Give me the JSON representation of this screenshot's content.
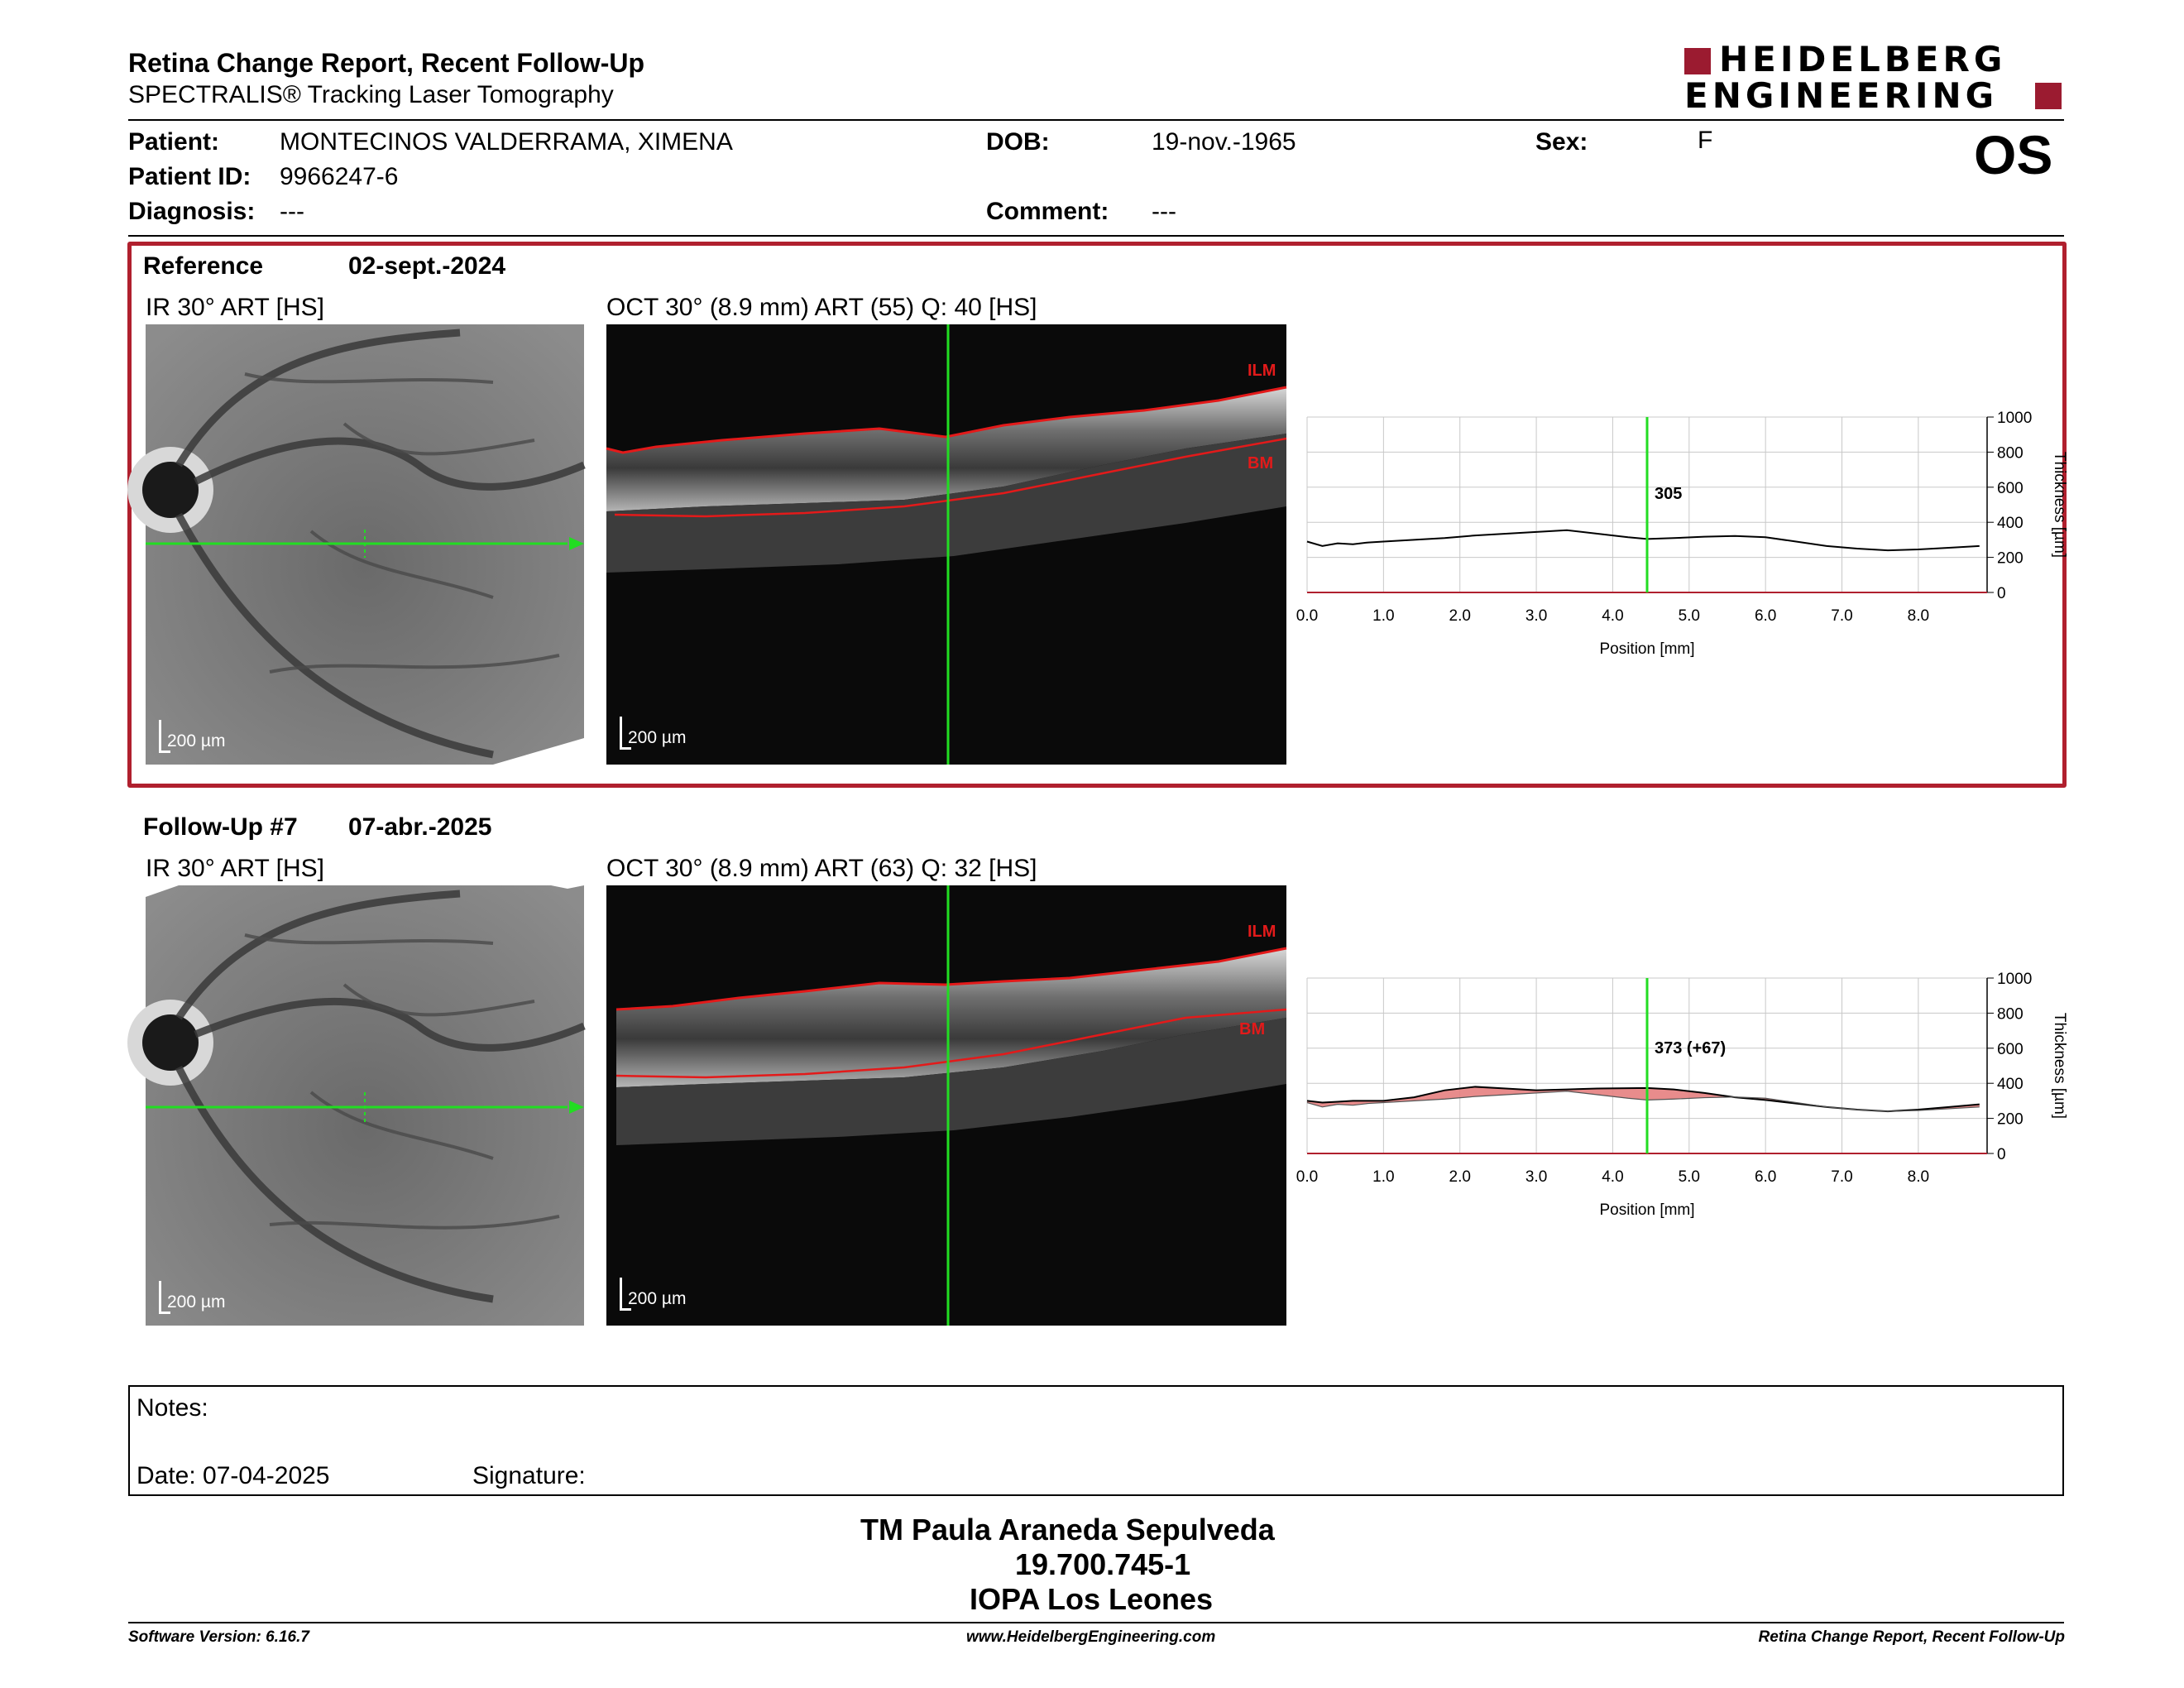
{
  "header": {
    "title": "Retina Change Report, Recent Follow-Up",
    "subtitle": "SPECTRALIS® Tracking Laser Tomography",
    "logo_line1": "HEIDELBERG",
    "logo_line2": "ENGINEERING",
    "eye": "OS"
  },
  "patient": {
    "name_label": "Patient:",
    "name": "MONTECINOS VALDERRAMA, XIMENA",
    "id_label": "Patient ID:",
    "id": "9966247-6",
    "diagnosis_label": "Diagnosis:",
    "diagnosis": "---",
    "dob_label": "DOB:",
    "dob": "19-nov.-1965",
    "comment_label": "Comment:",
    "comment": "---",
    "sex_label": "Sex:",
    "sex": "F"
  },
  "reference": {
    "label": "Reference",
    "date": "02-sept.-2024",
    "ir_title": "IR 30° ART [HS]",
    "oct_title": "OCT 30° (8.9 mm) ART (55) Q: 40 [HS]",
    "scale": "200 µm",
    "ilm": "ILM",
    "bm": "BM",
    "cursor_value": "305"
  },
  "followup": {
    "label": "Follow-Up #7",
    "date": "07-abr.-2025",
    "ir_title": "IR 30° ART [HS]",
    "oct_title": "OCT 30° (8.9 mm) ART (63) Q: 32 [HS]",
    "scale": "200 µm",
    "ilm": "ILM",
    "bm": "BM",
    "cursor_value": "373 (+67)"
  },
  "chart_data": [
    {
      "type": "line",
      "xlabel": "Position [mm]",
      "ylabel": "Thickness [µm]",
      "xlim": [
        0,
        8.9
      ],
      "ylim": [
        0,
        1000
      ],
      "xticks": [
        "0.0",
        "1.0",
        "2.0",
        "3.0",
        "4.0",
        "5.0",
        "6.0",
        "7.0",
        "8.0"
      ],
      "yticks": [
        "0",
        "200",
        "400",
        "600",
        "800",
        "1000"
      ],
      "grid": true,
      "cursor_x": 4.45,
      "x": [
        0.0,
        0.2,
        0.4,
        0.6,
        0.8,
        1.0,
        1.4,
        1.8,
        2.2,
        2.6,
        3.0,
        3.4,
        3.8,
        4.2,
        4.45,
        4.8,
        5.2,
        5.6,
        6.0,
        6.4,
        6.8,
        7.2,
        7.6,
        8.0,
        8.4,
        8.8
      ],
      "series": [
        {
          "values": [
            290,
            265,
            280,
            275,
            285,
            290,
            300,
            310,
            325,
            335,
            345,
            355,
            335,
            315,
            305,
            310,
            318,
            322,
            315,
            290,
            265,
            250,
            240,
            245,
            255,
            265
          ]
        }
      ]
    },
    {
      "type": "line",
      "xlabel": "Position [mm]",
      "ylabel": "Thickness [µm]",
      "xlim": [
        0,
        8.9
      ],
      "ylim": [
        0,
        1000
      ],
      "xticks": [
        "0.0",
        "1.0",
        "2.0",
        "3.0",
        "4.0",
        "5.0",
        "6.0",
        "7.0",
        "8.0"
      ],
      "yticks": [
        "0",
        "200",
        "400",
        "600",
        "800",
        "1000"
      ],
      "grid": true,
      "cursor_x": 4.45,
      "x": [
        0.0,
        0.2,
        0.4,
        0.6,
        0.8,
        1.0,
        1.4,
        1.8,
        2.2,
        2.6,
        3.0,
        3.4,
        3.8,
        4.2,
        4.45,
        4.8,
        5.2,
        5.6,
        6.0,
        6.4,
        6.8,
        7.2,
        7.6,
        8.0,
        8.4,
        8.8
      ],
      "series": [
        {
          "values": [
            300,
            290,
            295,
            300,
            300,
            300,
            320,
            360,
            380,
            370,
            360,
            365,
            370,
            372,
            373,
            365,
            345,
            320,
            305,
            285,
            265,
            250,
            240,
            250,
            265,
            280
          ]
        },
        {
          "values": [
            290,
            265,
            280,
            275,
            285,
            290,
            300,
            310,
            325,
            335,
            345,
            355,
            335,
            315,
            305,
            310,
            318,
            322,
            315,
            290,
            265,
            250,
            240,
            245,
            255,
            265
          ]
        }
      ]
    }
  ],
  "notes": {
    "label": "Notes:",
    "date_label": "Date: 07-04-2025",
    "signature_label": "Signature:"
  },
  "signer": {
    "name": "TM Paula Araneda Sepulveda",
    "id": "19.700.745-1",
    "org": "IOPA Los Leones"
  },
  "footer": {
    "software": "Software Version: 6.16.7",
    "website": "www.HeidelbergEngineering.com",
    "report": "Retina Change Report, Recent Follow-Up"
  },
  "colors": {
    "accent_red": "#b0202e",
    "logo_red": "#9b1b30",
    "cursor_green": "#22dd22",
    "increase_fill": "#e58080"
  }
}
